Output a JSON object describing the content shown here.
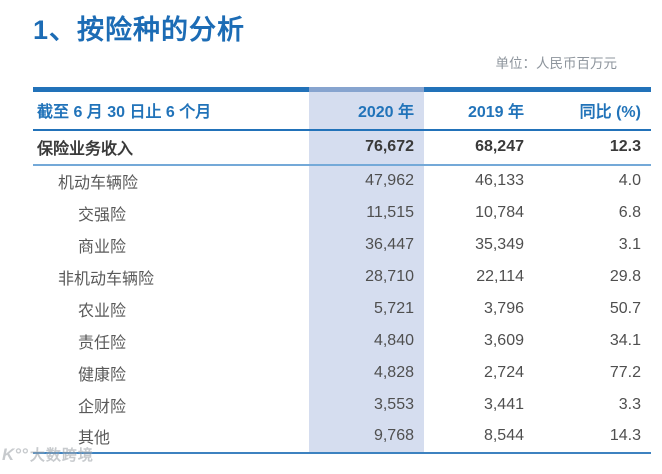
{
  "page": {
    "title": "1、按险种的分析",
    "unit_label": "单位：人民币百万元",
    "watermark_logo": "K°°",
    "watermark_text": "大数跨境"
  },
  "table": {
    "header": {
      "period": "截至 6 月 30 日止 6 个月",
      "col_2020": "2020 年",
      "col_2019": "2019 年",
      "col_yoy": "同比 (%)"
    },
    "rows": [
      {
        "label": "保险业务收入",
        "indent": 0,
        "bold": true,
        "v2020": "76,672",
        "v2019": "68,247",
        "yoy": "12.3"
      },
      {
        "label": "机动车辆险",
        "indent": 1,
        "bold": false,
        "v2020": "47,962",
        "v2019": "46,133",
        "yoy": "4.0"
      },
      {
        "label": "交强险",
        "indent": 2,
        "bold": false,
        "v2020": "11,515",
        "v2019": "10,784",
        "yoy": "6.8"
      },
      {
        "label": "商业险",
        "indent": 2,
        "bold": false,
        "v2020": "36,447",
        "v2019": "35,349",
        "yoy": "3.1"
      },
      {
        "label": "非机动车辆险",
        "indent": 1,
        "bold": false,
        "v2020": "28,710",
        "v2019": "22,114",
        "yoy": "29.8"
      },
      {
        "label": "农业险",
        "indent": 2,
        "bold": false,
        "v2020": "5,721",
        "v2019": "3,796",
        "yoy": "50.7"
      },
      {
        "label": "责任险",
        "indent": 2,
        "bold": false,
        "v2020": "4,840",
        "v2019": "3,609",
        "yoy": "34.1"
      },
      {
        "label": "健康险",
        "indent": 2,
        "bold": false,
        "v2020": "4,828",
        "v2019": "2,724",
        "yoy": "77.2"
      },
      {
        "label": "企财险",
        "indent": 2,
        "bold": false,
        "v2020": "3,553",
        "v2019": "3,441",
        "yoy": "3.3"
      },
      {
        "label": "其他",
        "indent": 2,
        "bold": false,
        "v2020": "9,768",
        "v2019": "8,544",
        "yoy": "14.3"
      }
    ]
  },
  "colors": {
    "accent_blue": "#2272b9",
    "title_blue": "#1c6cb5",
    "highlight_column_bg": "#d5ddef",
    "light_rule_blue": "#74a9d8",
    "body_text": "#595959",
    "unit_text": "#8d949c"
  }
}
